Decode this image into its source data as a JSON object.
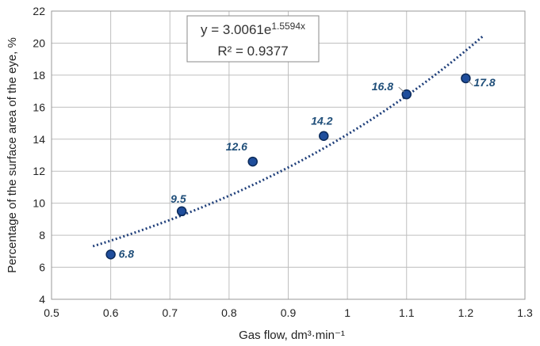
{
  "chart_data": {
    "type": "scatter",
    "xlabel": "Gas flow, dm³·min⁻¹",
    "ylabel": "Percentage of the surface area of the eye, %",
    "xlim": [
      0.5,
      1.3
    ],
    "ylim": [
      4,
      22
    ],
    "xticks": [
      "0.5",
      "0.6",
      "0.7",
      "0.8",
      "0.9",
      "1",
      "1.1",
      "1.2",
      "1.3"
    ],
    "yticks": [
      "4",
      "6",
      "8",
      "10",
      "12",
      "14",
      "16",
      "18",
      "20",
      "22"
    ],
    "grid": true,
    "points": [
      {
        "x": 0.6,
        "y": 6.8,
        "label": "6.8"
      },
      {
        "x": 0.72,
        "y": 9.5,
        "label": "9.5"
      },
      {
        "x": 0.84,
        "y": 12.6,
        "label": "12.6"
      },
      {
        "x": 0.96,
        "y": 14.2,
        "label": "14.2"
      },
      {
        "x": 1.1,
        "y": 16.8,
        "label": "16.8"
      },
      {
        "x": 1.2,
        "y": 17.8,
        "label": "17.8"
      }
    ],
    "trendline": {
      "type": "exponential",
      "a": 3.0061,
      "b": 1.5594,
      "x_range": [
        0.57,
        1.23
      ],
      "equation_base": "y = 3.0061e",
      "equation_exponent": "1.5594x",
      "r_squared": "R² = 0.9377"
    },
    "colors": {
      "marker_fill": "#1f4e9c",
      "marker_stroke": "#0b2a5a",
      "trendline": "#1f3f7a",
      "label": "#1f4e79",
      "grid": "#bfbfbf"
    }
  }
}
